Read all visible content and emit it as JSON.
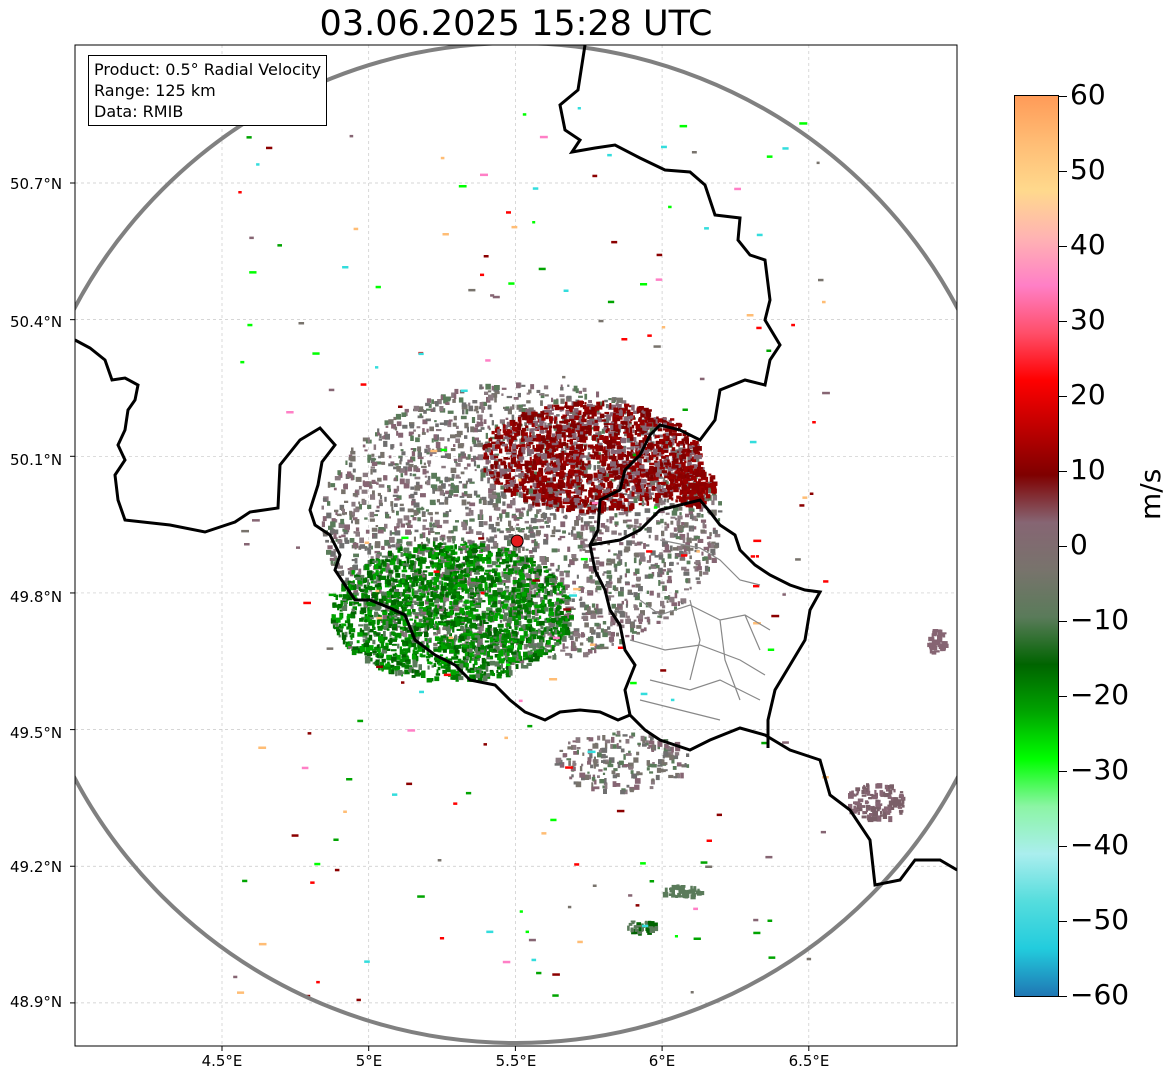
{
  "title": "03.06.2025 15:28 UTC",
  "info": {
    "product": "Product: 0.5° Radial Velocity",
    "range": "Range: 125 km",
    "source": "Data: RMIB"
  },
  "lat_labels": [
    "50.7°N",
    "50.4°N",
    "50.1°N",
    "49.8°N",
    "49.5°N",
    "49.2°N",
    "48.9°N"
  ],
  "lon_labels": [
    "4.5°E",
    "5°E",
    "5.5°E",
    "6°E",
    "6.5°E"
  ],
  "colorbar": {
    "unit": "m/s",
    "ticks": [
      "60",
      "50",
      "40",
      "30",
      "20",
      "10",
      "0",
      "−10",
      "−20",
      "−30",
      "−40",
      "−50",
      "−60"
    ],
    "colors": [
      "#ff9b58",
      "#ffbd75",
      "#ffd98d",
      "#ffb3b3",
      "#ff7fc6",
      "#ff4f6a",
      "#ff0000",
      "#bf0000",
      "#7f0000",
      "#866573",
      "#78736c",
      "#5a7b5a",
      "#006400",
      "#00a400",
      "#00ff00",
      "#8cf5a5",
      "#aaeeee",
      "#55dddd",
      "#22ccdd",
      "#1f77b4"
    ]
  },
  "radar_site": {
    "name": "radar-site",
    "lat": 49.914,
    "lon": 5.506
  },
  "colors": {
    "range_ring": "#808080",
    "border": "#000000",
    "site": "#e31a1c"
  }
}
